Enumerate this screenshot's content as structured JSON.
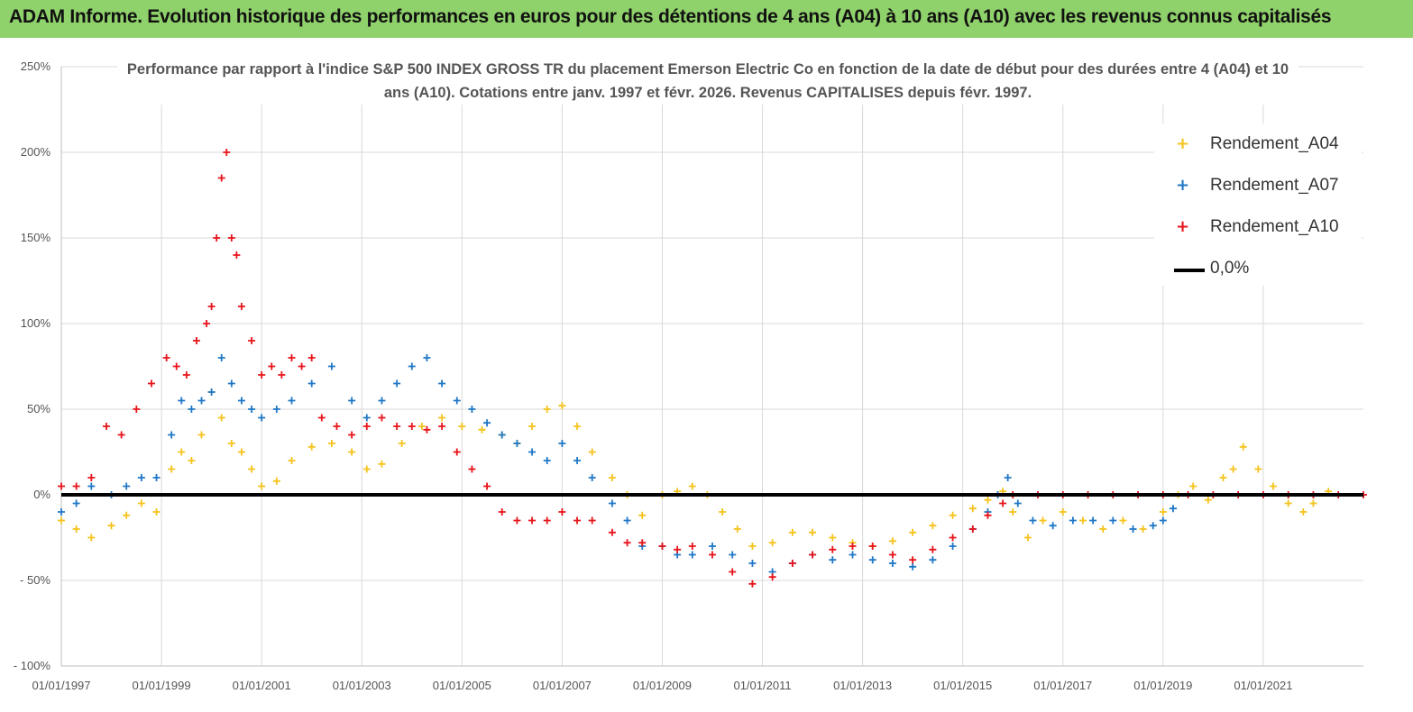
{
  "header": {
    "title": "ADAM Informe. Evolution historique des performances en euros pour des détentions de 4 ans (A04) à 10 ans (A10) avec les revenus connus capitalisés"
  },
  "chart_data": {
    "type": "scatter",
    "title": "Performance par rapport à l'indice S&P 500 INDEX GROSS TR  du placement Emerson Electric Co en fonction de la date de début pour des durées entre 4 (A04) et 10 ans (A10). Cotations entre janv. 1997 et févr. 2026. Revenus CAPITALISES depuis févr. 1997.",
    "xlabel": "",
    "ylabel": "",
    "x_range": [
      1997.0,
      2023.0
    ],
    "ylim": [
      -100,
      250
    ],
    "y_ticks": [
      {
        "value": 250,
        "label": "250%"
      },
      {
        "value": 200,
        "label": "200%"
      },
      {
        "value": 150,
        "label": "150%"
      },
      {
        "value": 100,
        "label": "100%"
      },
      {
        "value": 50,
        "label": "50%"
      },
      {
        "value": 0,
        "label": "0%"
      },
      {
        "value": -50,
        "label": "- 50%"
      },
      {
        "value": -100,
        "label": "- 100%"
      }
    ],
    "x_ticks": [
      {
        "value": 1997,
        "label": "01/01/1997"
      },
      {
        "value": 1999,
        "label": "01/01/1999"
      },
      {
        "value": 2001,
        "label": "01/01/2001"
      },
      {
        "value": 2003,
        "label": "01/01/2003"
      },
      {
        "value": 2005,
        "label": "01/01/2005"
      },
      {
        "value": 2007,
        "label": "01/01/2007"
      },
      {
        "value": 2009,
        "label": "01/01/2009"
      },
      {
        "value": 2011,
        "label": "01/01/2011"
      },
      {
        "value": 2013,
        "label": "01/01/2013"
      },
      {
        "value": 2015,
        "label": "01/01/2015"
      },
      {
        "value": 2017,
        "label": "01/01/2017"
      },
      {
        "value": 2019,
        "label": "01/01/2019"
      },
      {
        "value": 2021,
        "label": "01/01/2021"
      }
    ],
    "grid": true,
    "legend_position": "top-right",
    "series": [
      {
        "name": "Rendement_A04",
        "color": "#f5c31c",
        "marker": "plus",
        "x": [
          1997.0,
          1997.3,
          1997.6,
          1998.0,
          1998.3,
          1998.6,
          1998.9,
          1999.2,
          1999.4,
          1999.6,
          1999.8,
          2000.0,
          2000.2,
          2000.4,
          2000.6,
          2000.8,
          2001.0,
          2001.3,
          2001.6,
          2002.0,
          2002.4,
          2002.8,
          2003.1,
          2003.4,
          2003.8,
          2004.2,
          2004.6,
          2005.0,
          2005.4,
          2005.8,
          2006.1,
          2006.4,
          2006.7,
          2007.0,
          2007.3,
          2007.6,
          2008.0,
          2008.3,
          2008.6,
          2009.0,
          2009.3,
          2009.6,
          2009.9,
          2010.2,
          2010.5,
          2010.8,
          2011.2,
          2011.6,
          2012.0,
          2012.4,
          2012.8,
          2013.2,
          2013.6,
          2014.0,
          2014.4,
          2014.8,
          2015.2,
          2015.5,
          2015.8,
          2016.0,
          2016.3,
          2016.6,
          2017.0,
          2017.4,
          2017.8,
          2018.2,
          2018.6,
          2019.0,
          2019.3,
          2019.6,
          2019.9,
          2020.2,
          2020.4,
          2020.6,
          2020.9,
          2021.2,
          2021.5,
          2021.8,
          2022.0,
          2022.3
        ],
        "y": [
          -15,
          -20,
          -25,
          -18,
          -12,
          -5,
          -10,
          15,
          25,
          20,
          35,
          60,
          45,
          30,
          25,
          15,
          5,
          8,
          20,
          28,
          30,
          25,
          15,
          18,
          30,
          40,
          45,
          40,
          38,
          35,
          30,
          40,
          50,
          52,
          40,
          25,
          10,
          0,
          -12,
          0,
          2,
          5,
          0,
          -10,
          -20,
          -30,
          -28,
          -22,
          -22,
          -25,
          -28,
          -30,
          -27,
          -22,
          -18,
          -12,
          -8,
          -3,
          2,
          -10,
          -25,
          -15,
          -10,
          -15,
          -20,
          -15,
          -20,
          -10,
          0,
          5,
          -3,
          10,
          15,
          28,
          15,
          5,
          -5,
          -10,
          -5,
          2
        ]
      },
      {
        "name": "Rendement_A07",
        "color": "#1f77c6",
        "marker": "plus",
        "x": [
          1997.0,
          1997.3,
          1997.6,
          1998.0,
          1998.3,
          1998.6,
          1998.9,
          1999.2,
          1999.4,
          1999.6,
          1999.8,
          2000.0,
          2000.2,
          2000.4,
          2000.6,
          2000.8,
          2001.0,
          2001.3,
          2001.6,
          2002.0,
          2002.4,
          2002.8,
          2003.1,
          2003.4,
          2003.7,
          2004.0,
          2004.3,
          2004.6,
          2004.9,
          2005.2,
          2005.5,
          2005.8,
          2006.1,
          2006.4,
          2006.7,
          2007.0,
          2007.3,
          2007.6,
          2008.0,
          2008.3,
          2008.6,
          2009.0,
          2009.3,
          2009.6,
          2010.0,
          2010.4,
          2010.8,
          2011.2,
          2011.6,
          2012.0,
          2012.4,
          2012.8,
          2013.2,
          2013.6,
          2014.0,
          2014.4,
          2014.8,
          2015.2,
          2015.5,
          2015.7,
          2015.9,
          2016.1,
          2016.4,
          2016.8,
          2017.2,
          2017.6,
          2018.0,
          2018.4,
          2018.8,
          2019.0,
          2019.2
        ],
        "y": [
          -10,
          -5,
          5,
          0,
          5,
          10,
          10,
          35,
          55,
          50,
          55,
          60,
          80,
          65,
          55,
          50,
          45,
          50,
          55,
          65,
          75,
          55,
          45,
          55,
          65,
          75,
          80,
          65,
          55,
          50,
          42,
          35,
          30,
          25,
          20,
          30,
          20,
          10,
          -5,
          -15,
          -30,
          -30,
          -35,
          -35,
          -30,
          -35,
          -40,
          -45,
          -40,
          -35,
          -38,
          -35,
          -38,
          -40,
          -42,
          -38,
          -30,
          -20,
          -10,
          0,
          10,
          -5,
          -15,
          -18,
          -15,
          -15,
          -15,
          -20,
          -18,
          -15,
          -8
        ]
      },
      {
        "name": "Rendement_A10",
        "color": "#e8141a",
        "marker": "plus",
        "x": [
          1997.0,
          1997.3,
          1997.6,
          1997.9,
          1998.2,
          1998.5,
          1998.8,
          1999.1,
          1999.3,
          1999.5,
          1999.7,
          1999.9,
          2000.0,
          2000.1,
          2000.2,
          2000.3,
          2000.4,
          2000.5,
          2000.6,
          2000.8,
          2001.0,
          2001.2,
          2001.4,
          2001.6,
          2001.8,
          2002.0,
          2002.2,
          2002.5,
          2002.8,
          2003.1,
          2003.4,
          2003.7,
          2004.0,
          2004.3,
          2004.6,
          2004.9,
          2005.2,
          2005.5,
          2005.8,
          2006.1,
          2006.4,
          2006.7,
          2007.0,
          2007.3,
          2007.6,
          2008.0,
          2008.3,
          2008.6,
          2009.0,
          2009.3,
          2009.6,
          2010.0,
          2010.4,
          2010.8,
          2011.2,
          2011.6,
          2012.0,
          2012.4,
          2012.8,
          2013.2,
          2013.6,
          2014.0,
          2014.4,
          2014.8,
          2015.2,
          2015.5,
          2015.8,
          2016.0,
          2016.5,
          2017.0,
          2017.5,
          2018.0,
          2018.5,
          2019.0,
          2019.5,
          2020.0,
          2020.5,
          2021.0,
          2021.5,
          2022.0,
          2022.5,
          2023.0
        ],
        "y": [
          5,
          5,
          10,
          40,
          35,
          50,
          65,
          80,
          75,
          70,
          90,
          100,
          110,
          150,
          185,
          200,
          150,
          140,
          110,
          90,
          70,
          75,
          70,
          80,
          75,
          80,
          45,
          40,
          35,
          40,
          45,
          40,
          40,
          38,
          40,
          25,
          15,
          5,
          -10,
          -15,
          -15,
          -15,
          -10,
          -15,
          -15,
          -22,
          -28,
          -28,
          -30,
          -32,
          -30,
          -35,
          -45,
          -52,
          -48,
          -40,
          -35,
          -32,
          -30,
          -30,
          -35,
          -38,
          -32,
          -25,
          -20,
          -12,
          -5,
          0,
          0,
          0,
          0,
          0,
          0,
          0,
          0,
          0,
          0,
          0,
          0,
          0,
          0,
          0
        ]
      },
      {
        "name": "0,0%",
        "color": "#000000",
        "marker": "line",
        "x": [
          1997.0,
          2023.0
        ],
        "y": [
          0,
          0
        ]
      }
    ]
  }
}
